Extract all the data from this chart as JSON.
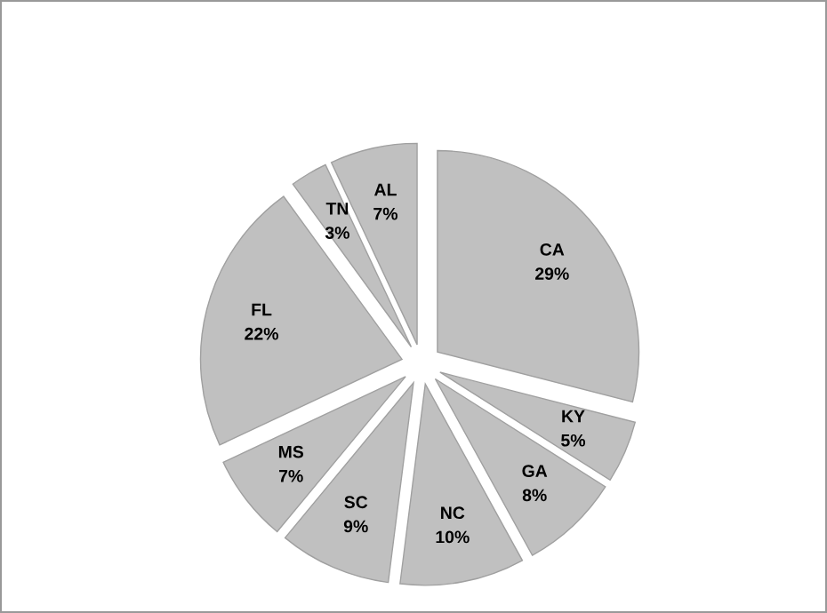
{
  "chart_data": {
    "type": "pie",
    "categories": [
      "CA",
      "KY",
      "GA",
      "NC",
      "SC",
      "MS",
      "FL",
      "TN",
      "AL"
    ],
    "values": [
      29,
      5,
      8,
      10,
      9,
      7,
      22,
      3,
      7
    ],
    "value_labels": [
      "29%",
      "5%",
      "8%",
      "10%",
      "9%",
      "7%",
      "22%",
      "3%",
      "7%"
    ],
    "colors": [
      "#c0c0c0",
      "#c0c0c0",
      "#c0c0c0",
      "#c0c0c0",
      "#c0c0c0",
      "#c0c0c0",
      "#c0c0c0",
      "#c0c0c0",
      "#c0c0c0"
    ]
  }
}
